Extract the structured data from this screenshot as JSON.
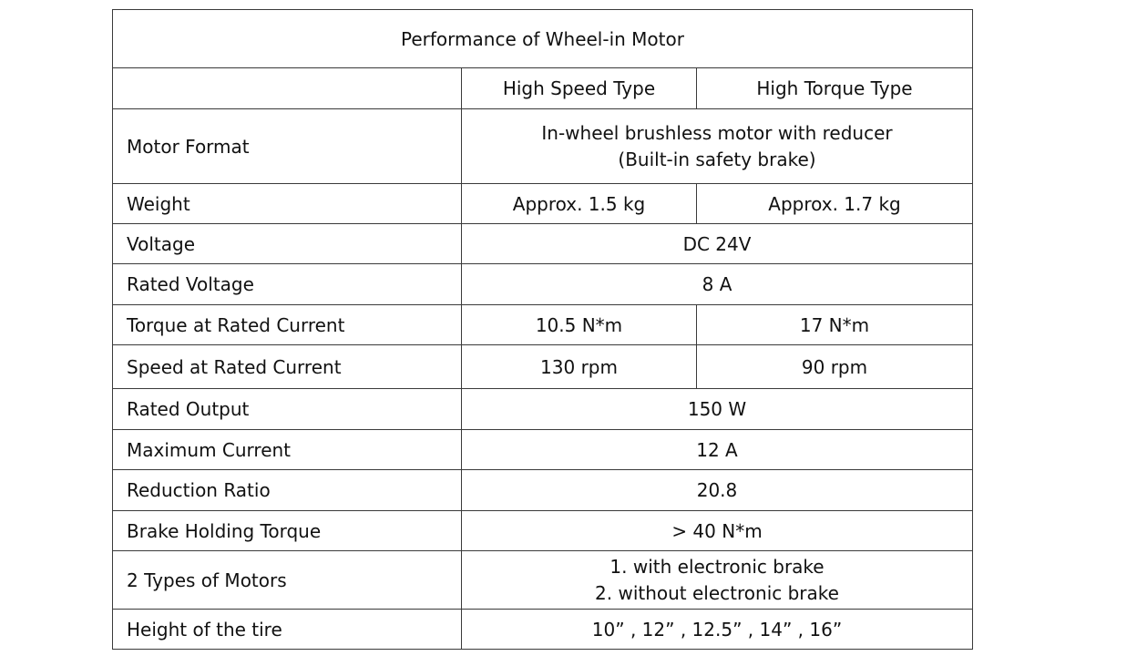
{
  "table": {
    "title": "Performance of Wheel-in Motor",
    "columns": [
      "",
      "High Speed Type",
      "High Torque Type"
    ],
    "rows": [
      {
        "label": "Motor Format",
        "value_lines": [
          "In-wheel brushless motor with reducer",
          "(Built-in safety brake)"
        ]
      },
      {
        "label": "Weight",
        "high_speed": "Approx. 1.5 kg",
        "high_torque": "Approx. 1.7 kg"
      },
      {
        "label": "Voltage",
        "value": "DC 24V"
      },
      {
        "label": "Rated Voltage",
        "value": "8 A"
      },
      {
        "label": "Torque at Rated Current",
        "high_speed": "10.5 N*m",
        "high_torque": "17 N*m"
      },
      {
        "label": "Speed at Rated Current",
        "high_speed": "130 rpm",
        "high_torque": "90 rpm"
      },
      {
        "label": "Rated Output",
        "value": "150 W"
      },
      {
        "label": "Maximum Current",
        "value": "12 A"
      },
      {
        "label": "Reduction Ratio",
        "value": "20.8"
      },
      {
        "label": "Brake Holding Torque",
        "value": "> 40 N*m"
      },
      {
        "label": "2 Types of Motors",
        "value_lines": [
          "1. with electronic brake",
          "2. without electronic brake"
        ]
      },
      {
        "label": "Height of the tire",
        "value": "10” , 12”  , 12.5”  , 14”  , 16”"
      }
    ]
  }
}
